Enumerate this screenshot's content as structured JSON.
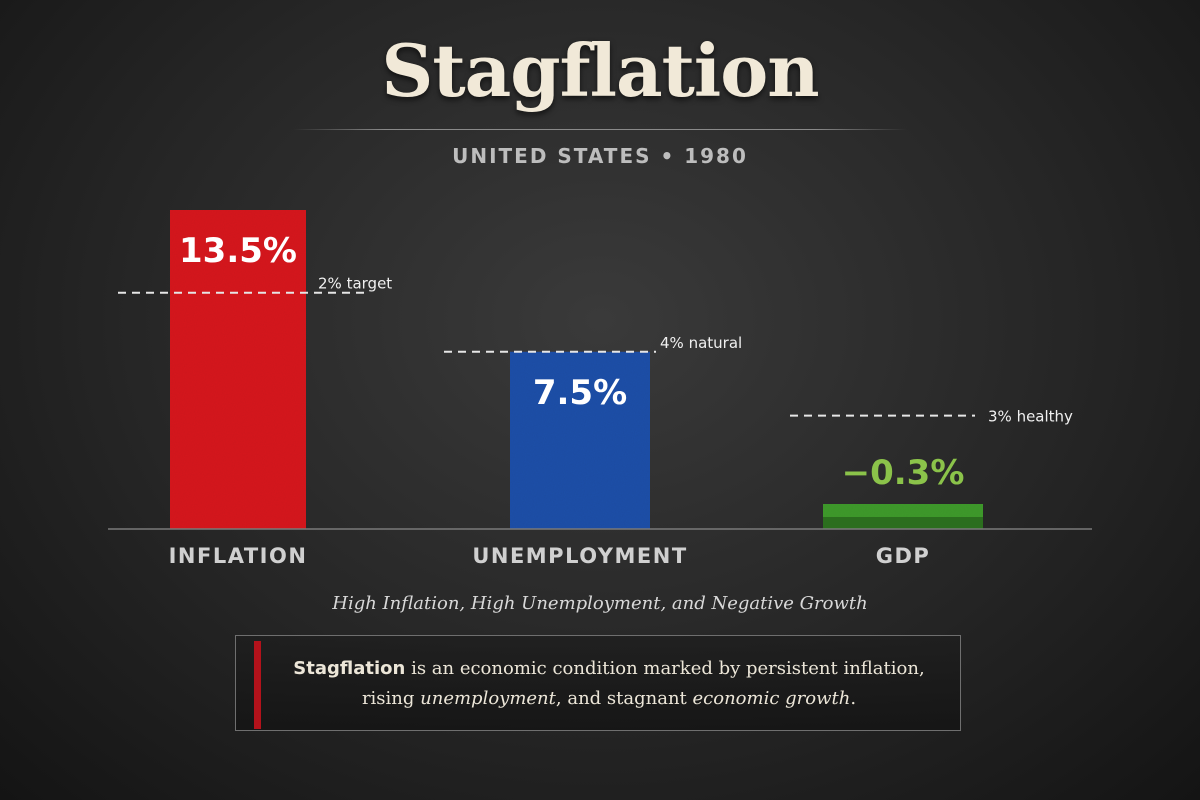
{
  "chart_data": {
    "type": "bar",
    "title": "Stagflation",
    "subtitle": "UNITED STATES • 1980",
    "categories": [
      "INFLATION",
      "UNEMPLOYMENT",
      "GDP"
    ],
    "values": [
      13.5,
      7.5,
      -0.3
    ],
    "value_labels": [
      "13.5%",
      "7.5%",
      "−0.3%"
    ],
    "colors": [
      "#d6161c",
      "#1e4fa8",
      "#3f9a2c"
    ],
    "value_label_colors": [
      "#ffffff",
      "#ffffff",
      "#8bc34a"
    ],
    "reference_lines": [
      {
        "value": 10,
        "label": "2% target"
      },
      {
        "value": 7.5,
        "label": "4% natural"
      },
      {
        "value": 4.8,
        "label": "3% healthy"
      }
    ],
    "ylim": [
      -0.5,
      13.5
    ],
    "grid": false,
    "legend": "none"
  },
  "caption": "High Inflation, High Unemployment, and Negative Growth",
  "definition": {
    "term": "Stagflation",
    "text_1": " is an economic condition marked by persistent inflation,",
    "text_2a": "rising ",
    "text_2b": "unemployment",
    "text_2c": ", and stagnant ",
    "text_2d": "economic growth",
    "text_2e": "."
  }
}
